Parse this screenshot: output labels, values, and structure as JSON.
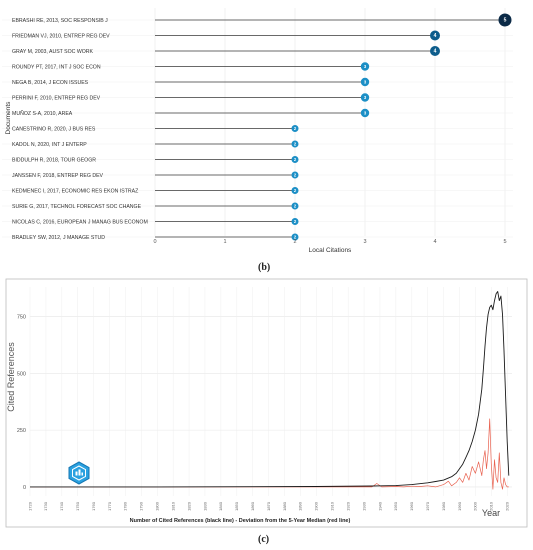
{
  "panel_labels": {
    "b": "(b)",
    "c": "(c)"
  },
  "colors": {
    "lollipop_dark": "#0b2a47",
    "lollipop_mid": "#0e5d8c",
    "lollipop_light": "#1c8fc6",
    "stem": "#3a3a3a",
    "black_line": "#1a1a1a",
    "red_line": "#e8614f",
    "badge": "#2aa1e0"
  },
  "badge_icon": "rpys-badge-icon",
  "chart_data": [
    {
      "type": "lollipop",
      "title": "",
      "xlabel": "Local Citations",
      "ylabel": "Documents",
      "xlim": [
        0,
        5
      ],
      "x_ticks": [
        "0",
        "1",
        "2",
        "3",
        "4",
        "5"
      ],
      "grid": true,
      "categories": [
        "EBRASHI RE, 2013, SOC RESPONSIB J",
        "FRIEDMAN VJ, 2010, ENTREP REG DEV",
        "GRAY M, 2003, AUST SOC WORK",
        "ROUNDY PT, 2017, INT J SOC ECON",
        "NEGA B, 2014, J ECON ISSUES",
        "PERRINI F, 2010, ENTREP REG DEV",
        "MUÑOZ S-A, 2010, AREA",
        "CANESTRINO R, 2020, J BUS RES",
        "KADOL N, 2020, INT J ENTERP",
        "BIDDULPH R, 2018, TOUR GEOGR",
        "JANSSEN F, 2018, ENTREP REG DEV",
        "KEDMENEC I, 2017, ECONOMIC RES EKON ISTRAZ",
        "SURIE G, 2017, TECHNOL FORECAST SOC CHANGE",
        "NICOLAS C, 2016, EUROPEAN J MANAG BUS ECONOM",
        "BRADLEY SW, 2012, J MANAGE STUD"
      ],
      "values": [
        5,
        4,
        4,
        3,
        3,
        3,
        3,
        2,
        2,
        2,
        2,
        2,
        2,
        2,
        2
      ],
      "data_labels": [
        "5",
        "4",
        "4",
        "3",
        "3",
        "3",
        "3",
        "2",
        "2",
        "2",
        "2",
        "2",
        "2",
        "2",
        "2"
      ]
    },
    {
      "type": "line",
      "title": "",
      "xlabel": "Number of Cited References (black line) - Deviation from the 5-Year Median (red line)",
      "ylabel": "Cited References",
      "x_axis_title": "Year",
      "xlim": [
        1720,
        2023
      ],
      "ylim": [
        -40,
        880
      ],
      "grid": true,
      "x_ticks": [
        "1720",
        "1730",
        "1740",
        "1750",
        "1760",
        "1770",
        "1780",
        "1790",
        "1800",
        "1810",
        "1820",
        "1830",
        "1840",
        "1850",
        "1860",
        "1870",
        "1880",
        "1890",
        "1900",
        "1910",
        "1920",
        "1930",
        "1940",
        "1950",
        "1960",
        "1970",
        "1980",
        "1990",
        "2000",
        "2010",
        "2020"
      ],
      "y_ticks": [
        "0",
        "250",
        "500",
        "750"
      ],
      "series": [
        {
          "name": "Number of Cited References",
          "color": "#1a1a1a",
          "x": [
            1720,
            1800,
            1900,
            1935,
            1950,
            1955,
            1960,
            1965,
            1970,
            1975,
            1980,
            1985,
            1988,
            1990,
            1992,
            1994,
            1996,
            1998,
            2000,
            2002,
            2004,
            2005,
            2006,
            2007,
            2008,
            2009,
            2010,
            2011,
            2012,
            2013,
            2014,
            2015,
            2016,
            2017,
            2018,
            2019,
            2020,
            2021
          ],
          "y": [
            0,
            0,
            2,
            4,
            6,
            8,
            10,
            14,
            18,
            24,
            30,
            45,
            60,
            80,
            100,
            130,
            160,
            200,
            250,
            320,
            430,
            520,
            620,
            700,
            760,
            790,
            800,
            780,
            820,
            850,
            860,
            820,
            840,
            760,
            600,
            400,
            200,
            50
          ]
        },
        {
          "name": "Deviation from the 5-Year Median",
          "color": "#e8614f",
          "x": [
            1720,
            1800,
            1900,
            1935,
            1938,
            1941,
            1950,
            1955,
            1960,
            1965,
            1970,
            1975,
            1980,
            1983,
            1985,
            1988,
            1990,
            1992,
            1994,
            1996,
            1998,
            2000,
            2002,
            2004,
            2005,
            2006,
            2007,
            2008,
            2009,
            2010,
            2011,
            2012,
            2013,
            2014,
            2015,
            2016,
            2017,
            2018,
            2019,
            2020,
            2021
          ],
          "y": [
            0,
            0,
            0,
            0,
            15,
            0,
            2,
            0,
            3,
            2,
            5,
            0,
            10,
            25,
            5,
            20,
            40,
            20,
            60,
            30,
            90,
            60,
            110,
            50,
            120,
            160,
            80,
            150,
            300,
            100,
            -10,
            120,
            40,
            20,
            150,
            20,
            -10,
            40,
            10,
            0,
            0
          ]
        }
      ]
    }
  ]
}
